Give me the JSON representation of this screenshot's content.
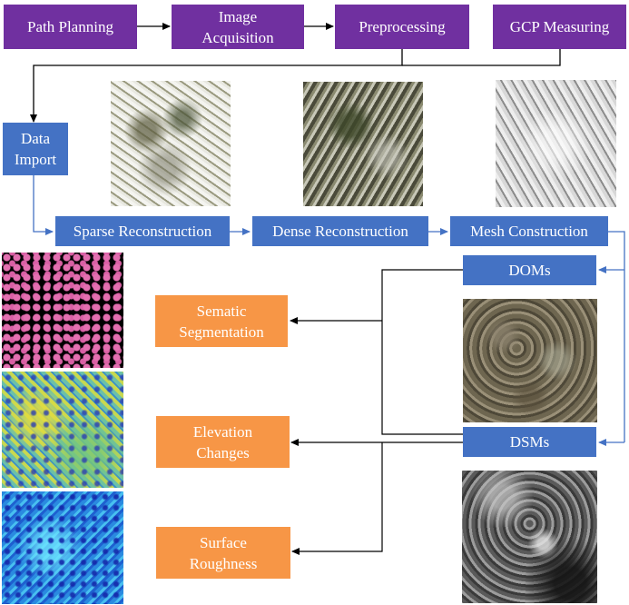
{
  "nodes": {
    "path_planning": "Path Planning",
    "image_acquisition": "Image\nAcquisition",
    "preprocessing": "Preprocessing",
    "gcp_measuring": "GCP Measuring",
    "data_import": "Data\nImport",
    "sparse_reconstruction": "Sparse Reconstruction",
    "dense_reconstruction": "Dense Reconstruction",
    "mesh_construction": "Mesh Construction",
    "doms": "DOMs",
    "dsms": "DSMs",
    "semantic_segmentation": "Sematic\nSegmentation",
    "elevation_changes": "Elevation\nChanges",
    "surface_roughness": "Surface\nRoughness"
  },
  "colors": {
    "workflow": "#7030a0",
    "reconstruction": "#4472c4",
    "analysis": "#f79646",
    "connector_dark": "#000000",
    "connector_blue": "#4472c4"
  },
  "images": {
    "sparse_cloud": "sparse-point-cloud-image",
    "dense_cloud": "dense-point-cloud-image",
    "mesh": "mesh-model-image",
    "dom": "orthomosaic-image",
    "dsm": "surface-model-image",
    "segmentation": "segmentation-map-image",
    "elevation": "elevation-change-map-image",
    "roughness": "roughness-map-image"
  }
}
